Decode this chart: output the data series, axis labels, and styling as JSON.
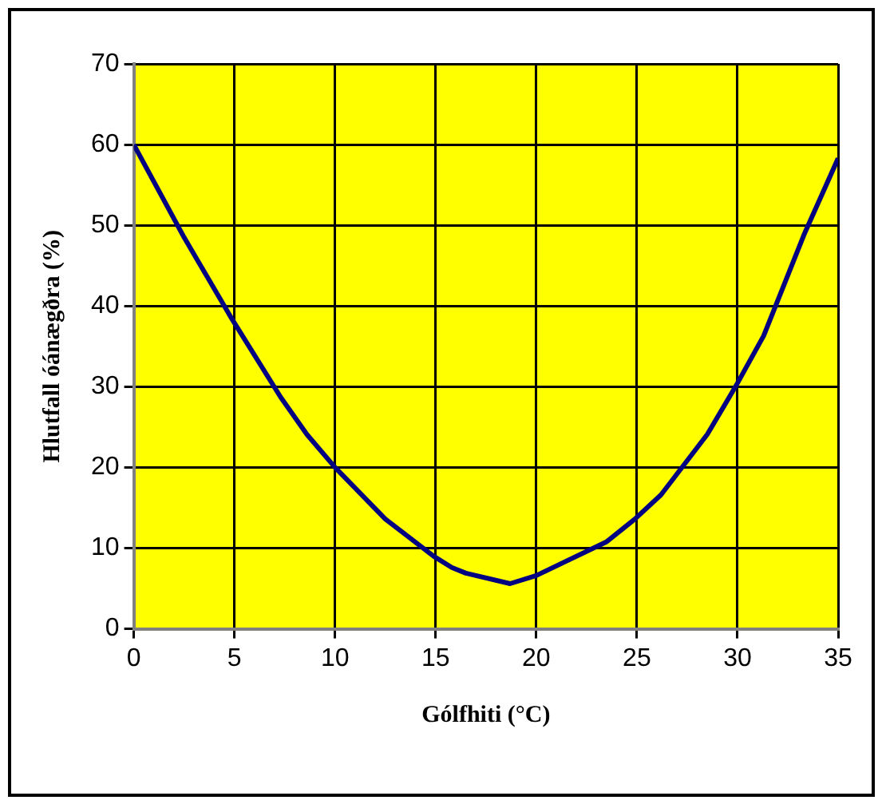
{
  "chart_data": {
    "type": "line",
    "xlabel": "Gólfhiti (°C)",
    "ylabel": "Hlutfall óánægðra (%)",
    "x": [
      0,
      2.5,
      4.9,
      7.3,
      8.6,
      10,
      12.5,
      14.9,
      15.8,
      16.5,
      18.7,
      20,
      23.5,
      24.9,
      26.2,
      28.5,
      29.9,
      31.3,
      33.3,
      35
    ],
    "series": [
      {
        "color": "#000080",
        "values": [
          60,
          48.5,
          38.3,
          28.7,
          24.1,
          20,
          13.6,
          9,
          7.6,
          6.9,
          5.6,
          6.6,
          10.8,
          13.6,
          16.6,
          24.1,
          30,
          36.3,
          48.8,
          58.3
        ]
      }
    ],
    "xlim": [
      0,
      35
    ],
    "xticks": [
      0,
      5,
      10,
      15,
      20,
      25,
      30,
      35
    ],
    "ylim": [
      0,
      70
    ],
    "yticks": [
      0,
      10,
      20,
      30,
      40,
      50,
      60,
      70
    ],
    "grid": true,
    "legend": false,
    "marker": "none",
    "line_style": "solid"
  }
}
